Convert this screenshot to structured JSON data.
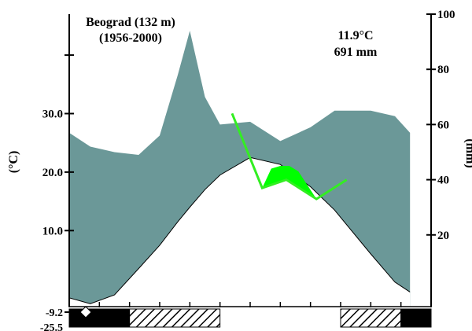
{
  "chart_data": {
    "type": "area",
    "station": {
      "title_line1": "Beograd (132 m)",
      "title_line2": "(1956-2000)",
      "mean_temperature": "11.9°C",
      "annual_precipitation": "691 mm"
    },
    "left_axis": {
      "label": "(°C)",
      "ticks": [
        "30.0",
        "20.0",
        "10.0"
      ],
      "tick_values": [
        30,
        20,
        10
      ],
      "min_label_1": "-9.2",
      "min_label_2": "-25.5",
      "range": [
        -3,
        47
      ]
    },
    "right_axis": {
      "label": "(mm)",
      "ticks": [
        "100",
        "80",
        "60",
        "40",
        "20"
      ],
      "tick_values": [
        100,
        80,
        60,
        40,
        20
      ],
      "range": [
        -6,
        100
      ]
    },
    "x": [
      1,
      1.7,
      2.5,
      3.3,
      4.0,
      4.6,
      5.0,
      5.5,
      6.0,
      7.0,
      8.0,
      9.0,
      9.8,
      11.0,
      11.8,
      12.3
    ],
    "temperature": [
      -1.5,
      -2.5,
      -1.0,
      3.5,
      7.5,
      11.5,
      14.0,
      17.0,
      19.5,
      22.5,
      21.3,
      17.5,
      13.5,
      6.0,
      1.2,
      -0.5
    ],
    "precipitation": [
      57,
      52,
      50,
      49,
      56,
      78,
      94,
      70,
      60,
      61,
      54,
      59,
      65,
      65,
      63,
      57
    ],
    "frost_bars": [
      {
        "months": [
          1,
          3
        ],
        "type": "solid"
      },
      {
        "months": [
          3,
          6
        ],
        "type": "hatched"
      },
      {
        "months": [
          10,
          12
        ],
        "type": "hatched"
      },
      {
        "months": [
          12,
          13
        ],
        "type": "solid"
      }
    ],
    "line_series": [
      {
        "x": [
          6.4,
          7.4,
          8.2,
          9.2,
          10.2
        ],
        "y": [
          64,
          37,
          40,
          33,
          40
        ]
      },
      {
        "x": [
          7.4,
          7.7,
          8.0,
          8.3,
          8.6,
          9.2
        ],
        "y": [
          37,
          44,
          45,
          45,
          43,
          33
        ]
      }
    ],
    "colors": {
      "precipitation_fill": "#6b9898",
      "background": "#ffffff",
      "line_green": "#33ee22",
      "fill_green": "#00ff00",
      "frost": "#000000"
    }
  }
}
